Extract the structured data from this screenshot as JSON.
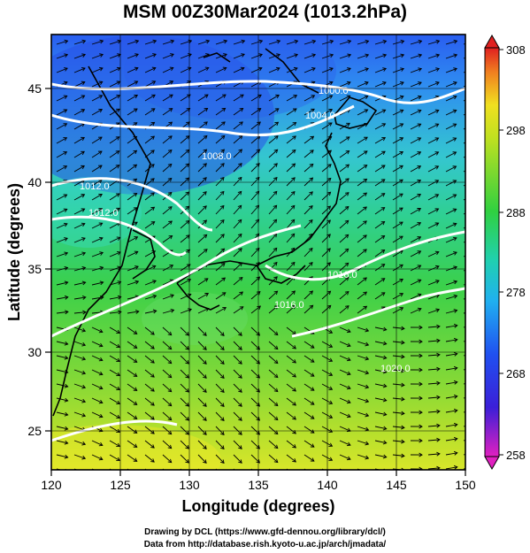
{
  "title": "MSM 00Z30Mar2024 (1013.2hPa)",
  "xaxis": {
    "label": "Longitude (degrees)",
    "ticks": [
      "120",
      "125",
      "130",
      "135",
      "140",
      "145",
      "150"
    ]
  },
  "yaxis": {
    "label": "Latitude  (degrees)",
    "ticks": [
      "25",
      "30",
      "35",
      "40",
      "45"
    ]
  },
  "colorbar": {
    "ticks": [
      "308",
      "298",
      "288",
      "278",
      "268",
      "258"
    ],
    "range": [
      258,
      308
    ]
  },
  "isobars": [
    {
      "label": "1000.0"
    },
    {
      "label": "1004.0"
    },
    {
      "label": "1008.0"
    },
    {
      "label": "1012.0"
    },
    {
      "label": "1012.0"
    },
    {
      "label": "1016.0"
    },
    {
      "label": "1016.0"
    },
    {
      "label": "1020.0"
    }
  ],
  "credits": [
    "Drawing by DCL (https://www.gfd-dennou.org/library/dcl/)",
    "Data from http://database.rish.kyoto-u.ac.jp/arch/jmadata/"
  ],
  "colors": {
    "magenta": "#e020c0",
    "blue": "#2040e0",
    "cyan": "#20d0d0",
    "green": "#30d040",
    "yellow": "#f0f020",
    "red": "#e02020"
  }
}
